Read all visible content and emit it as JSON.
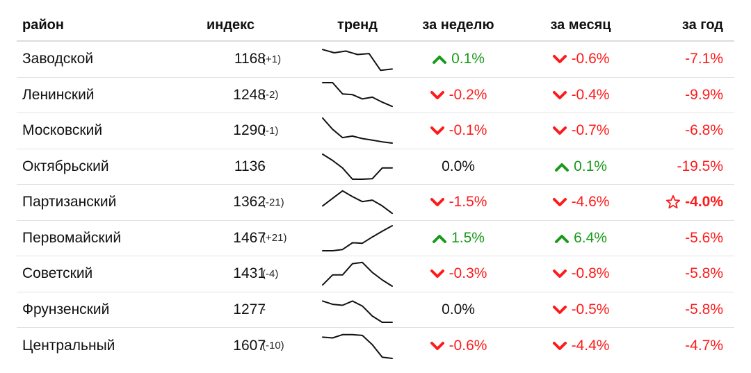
{
  "headers": {
    "name": "район",
    "index": "индекс",
    "trend": "тренд",
    "week": "за неделю",
    "month": "за месяц",
    "year": "за год"
  },
  "rows": [
    {
      "name": "Заводской",
      "index": "1168",
      "diff": "(+1)",
      "trend": [
        0.88,
        0.75,
        0.82,
        0.68,
        0.72,
        0.05,
        0.1
      ],
      "week": {
        "text": "0.1%",
        "dir": "up"
      },
      "month": {
        "text": "-0.6%",
        "dir": "down"
      },
      "year": {
        "text": "-7.1%",
        "icon": ""
      }
    },
    {
      "name": "Ленинский",
      "index": "1248",
      "diff": "(-2)",
      "trend": [
        1.0,
        1.0,
        0.55,
        0.52,
        0.35,
        0.42,
        0.22,
        0.05
      ],
      "week": {
        "text": "-0.2%",
        "dir": "down"
      },
      "month": {
        "text": "-0.4%",
        "dir": "down"
      },
      "year": {
        "text": "-9.9%",
        "icon": ""
      }
    },
    {
      "name": "Московский",
      "index": "1290",
      "diff": "(-1)",
      "trend": [
        1.0,
        0.55,
        0.22,
        0.28,
        0.18,
        0.12,
        0.05,
        0.0
      ],
      "week": {
        "text": "-0.1%",
        "dir": "down"
      },
      "month": {
        "text": "-0.7%",
        "dir": "down"
      },
      "year": {
        "text": "-6.8%",
        "icon": ""
      }
    },
    {
      "name": "Октябрьский",
      "index": "1136",
      "diff": "-",
      "trend": [
        1.0,
        0.75,
        0.45,
        0.0,
        0.0,
        0.02,
        0.45,
        0.45
      ],
      "week": {
        "text": "0.0%",
        "dir": "neutral"
      },
      "month": {
        "text": "0.1%",
        "dir": "up"
      },
      "year": {
        "text": "-19.5%",
        "icon": ""
      }
    },
    {
      "name": "Партизанский",
      "index": "1362",
      "diff": "(-21)",
      "trend": [
        0.35,
        0.65,
        0.95,
        0.72,
        0.52,
        0.58,
        0.35,
        0.05
      ],
      "week": {
        "text": "-1.5%",
        "dir": "down"
      },
      "month": {
        "text": "-4.6%",
        "dir": "down"
      },
      "year": {
        "text": "-4.0%",
        "icon": "star-icon"
      }
    },
    {
      "name": "Первомайский",
      "index": "1467",
      "diff": "(+21)",
      "trend": [
        0.0,
        0.0,
        0.05,
        0.32,
        0.3,
        0.55,
        0.78,
        1.0
      ],
      "week": {
        "text": "1.5%",
        "dir": "up"
      },
      "month": {
        "text": "6.4%",
        "dir": "up"
      },
      "year": {
        "text": "-5.6%",
        "icon": ""
      }
    },
    {
      "name": "Советский",
      "index": "1431",
      "diff": "(-4)",
      "trend": [
        0.05,
        0.45,
        0.45,
        0.9,
        0.95,
        0.55,
        0.25,
        0.0
      ],
      "week": {
        "text": "-0.3%",
        "dir": "down"
      },
      "month": {
        "text": "-0.8%",
        "dir": "down"
      },
      "year": {
        "text": "-5.8%",
        "icon": ""
      }
    },
    {
      "name": "Фрунзенский",
      "index": "1277",
      "diff": "-",
      "trend": [
        0.85,
        0.72,
        0.68,
        0.85,
        0.65,
        0.25,
        0.0,
        0.0
      ],
      "week": {
        "text": "0.0%",
        "dir": "neutral"
      },
      "month": {
        "text": "-0.5%",
        "dir": "down"
      },
      "year": {
        "text": "-5.8%",
        "icon": ""
      }
    },
    {
      "name": "Центральный",
      "index": "1607",
      "diff": "(-10)",
      "trend": [
        0.85,
        0.82,
        0.95,
        0.95,
        0.92,
        0.55,
        0.05,
        0.0
      ],
      "week": {
        "text": "-0.6%",
        "dir": "down"
      },
      "month": {
        "text": "-4.4%",
        "dir": "down"
      },
      "year": {
        "text": "-4.7%",
        "icon": ""
      }
    }
  ],
  "colors": {
    "up": "#1a9a1a",
    "down": "#ff1a1a",
    "neutral": "#111111",
    "year": "#ff1a1a"
  }
}
